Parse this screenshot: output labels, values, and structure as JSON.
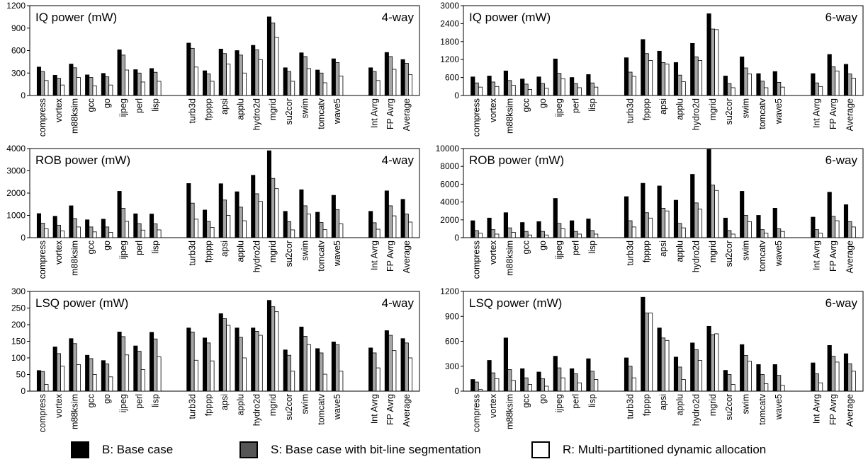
{
  "legend": {
    "base": "B: Base case",
    "seg": "S: Base case with bit-line segmentation",
    "multi": "R: Multi-partitioned dynamic allocation"
  },
  "colors": {
    "base": "#000000",
    "seg": "#a6a6a6",
    "multi": "#ffffff"
  },
  "chart_data": [
    {
      "type": "bar",
      "title": "IQ power (mW)",
      "config": "4-way",
      "ylim": [
        0,
        1200
      ],
      "yticks": [
        0,
        300,
        600,
        900,
        1200
      ],
      "categories": [
        "compress",
        "vortex",
        "m88ksim",
        "gcc",
        "go",
        "ijpeg",
        "perl",
        "lisp",
        "turb3d",
        "fpppp",
        "apsi",
        "applu",
        "hydro2d",
        "mgrid",
        "su2cor",
        "swim",
        "tomcatv",
        "wave5",
        "Int Avrg",
        "FP Avrg",
        "Average"
      ],
      "series": [
        {
          "name": "B",
          "values": [
            380,
            270,
            420,
            275,
            295,
            610,
            345,
            360,
            700,
            330,
            620,
            600,
            670,
            1050,
            370,
            570,
            340,
            490,
            370,
            575,
            480
          ]
        },
        {
          "name": "S",
          "values": [
            320,
            230,
            370,
            240,
            250,
            540,
            300,
            310,
            630,
            290,
            560,
            540,
            610,
            970,
            320,
            520,
            300,
            440,
            320,
            520,
            430
          ]
        },
        {
          "name": "R",
          "values": [
            200,
            140,
            240,
            130,
            140,
            340,
            180,
            190,
            380,
            190,
            420,
            300,
            480,
            780,
            190,
            360,
            170,
            260,
            200,
            350,
            280
          ]
        }
      ]
    },
    {
      "type": "bar",
      "title": "IQ power (mW)",
      "config": "6-way",
      "ylim": [
        0,
        3000
      ],
      "yticks": [
        0,
        600,
        1200,
        1800,
        2400,
        3000
      ],
      "categories": [
        "compress",
        "vortex",
        "m88ksim",
        "gcc",
        "go",
        "ijpeg",
        "perl",
        "lisp",
        "turb3d",
        "fpppp",
        "apsi",
        "applu",
        "hydro2d",
        "mgrid",
        "su2cor",
        "swim",
        "tomcatv",
        "wave5",
        "Int Avrg",
        "FP Avrg",
        "Average"
      ],
      "series": [
        {
          "name": "B",
          "values": [
            620,
            650,
            820,
            550,
            620,
            1220,
            600,
            700,
            1260,
            1870,
            1480,
            1100,
            1740,
            2730,
            650,
            1290,
            730,
            800,
            730,
            1370,
            1040
          ]
        },
        {
          "name": "S",
          "values": [
            420,
            450,
            500,
            380,
            400,
            740,
            400,
            420,
            780,
            1400,
            1100,
            680,
            1290,
            2220,
            400,
            920,
            480,
            440,
            420,
            960,
            720
          ]
        },
        {
          "name": "R",
          "values": [
            280,
            300,
            340,
            200,
            240,
            560,
            260,
            280,
            640,
            1170,
            1050,
            460,
            1170,
            2200,
            260,
            720,
            260,
            280,
            300,
            820,
            580
          ]
        }
      ]
    },
    {
      "type": "bar",
      "title": "ROB power (mW)",
      "config": "4-way",
      "ylim": [
        0,
        4000
      ],
      "yticks": [
        0,
        1000,
        2000,
        3000,
        4000
      ],
      "categories": [
        "compress",
        "vortex",
        "m88ksim",
        "gcc",
        "go",
        "ijpeg",
        "perl",
        "lisp",
        "turb3d",
        "fpppp",
        "apsi",
        "applu",
        "hydro2d",
        "mgrid",
        "su2cor",
        "swim",
        "tomcatv",
        "wave5",
        "Int Avrg",
        "FP Avrg",
        "Average"
      ],
      "series": [
        {
          "name": "B",
          "values": [
            1080,
            960,
            1430,
            800,
            830,
            2080,
            1070,
            1060,
            2430,
            1240,
            2420,
            2060,
            2800,
            3900,
            1180,
            2150,
            1140,
            1900,
            1180,
            2100,
            1720
          ]
        },
        {
          "name": "S",
          "values": [
            650,
            560,
            860,
            480,
            480,
            1320,
            630,
            620,
            1550,
            730,
            1690,
            1370,
            1970,
            2660,
            720,
            1430,
            680,
            1260,
            670,
            1430,
            1060
          ]
        },
        {
          "name": "R",
          "values": [
            400,
            300,
            480,
            260,
            240,
            730,
            340,
            350,
            830,
            460,
            1000,
            760,
            1630,
            2200,
            350,
            1060,
            360,
            620,
            380,
            980,
            700
          ]
        }
      ]
    },
    {
      "type": "bar",
      "title": "ROB power (mW)",
      "config": "6-way",
      "ylim": [
        0,
        10000
      ],
      "yticks": [
        0,
        2000,
        4000,
        6000,
        8000,
        10000
      ],
      "categories": [
        "compress",
        "vortex",
        "m88ksim",
        "gcc",
        "go",
        "ijpeg",
        "perl",
        "lisp",
        "turb3d",
        "fpppp",
        "apsi",
        "applu",
        "hydro2d",
        "mgrid",
        "su2cor",
        "swim",
        "tomcatv",
        "wave5",
        "Int Avrg",
        "FP Avrg",
        "Average"
      ],
      "series": [
        {
          "name": "B",
          "values": [
            1900,
            2200,
            2800,
            1700,
            1800,
            4400,
            1900,
            2100,
            4600,
            6100,
            5800,
            4200,
            7100,
            9900,
            2200,
            5200,
            2500,
            3300,
            2300,
            5100,
            3700
          ]
        },
        {
          "name": "S",
          "values": [
            800,
            900,
            1100,
            700,
            700,
            1600,
            700,
            800,
            1900,
            2800,
            3300,
            1600,
            3900,
            5900,
            800,
            2500,
            900,
            1000,
            900,
            2400,
            1800
          ]
        },
        {
          "name": "R",
          "values": [
            500,
            400,
            600,
            300,
            300,
            1000,
            400,
            400,
            1200,
            2200,
            3000,
            1100,
            3200,
            5300,
            400,
            1800,
            500,
            700,
            500,
            1900,
            1200
          ]
        }
      ]
    },
    {
      "type": "bar",
      "title": "LSQ power (mW)",
      "config": "4-way",
      "ylim": [
        0,
        300
      ],
      "yticks": [
        0,
        50,
        100,
        150,
        200,
        250,
        300
      ],
      "categories": [
        "compress",
        "vortex",
        "m88ksim",
        "gcc",
        "go",
        "ijpeg",
        "perl",
        "lisp",
        "turb3d",
        "fpppp",
        "apsi",
        "applu",
        "hydro2d",
        "mgrid",
        "su2cor",
        "swim",
        "tomcatv",
        "wave5",
        "Int Avrg",
        "FP Avrg",
        "Average"
      ],
      "series": [
        {
          "name": "B",
          "values": [
            62,
            133,
            158,
            108,
            92,
            178,
            136,
            177,
            190,
            160,
            233,
            190,
            190,
            273,
            124,
            193,
            128,
            148,
            130,
            182,
            158
          ]
        },
        {
          "name": "S",
          "values": [
            59,
            113,
            143,
            98,
            82,
            164,
            120,
            157,
            178,
            145,
            218,
            162,
            180,
            254,
            108,
            165,
            115,
            140,
            115,
            168,
            145
          ]
        },
        {
          "name": "R",
          "values": [
            20,
            75,
            80,
            50,
            43,
            109,
            65,
            103,
            93,
            91,
            198,
            100,
            168,
            239,
            60,
            140,
            51,
            60,
            70,
            122,
            100
          ]
        }
      ]
    },
    {
      "type": "bar",
      "title": "LSQ power (mW)",
      "config": "6-way",
      "ylim": [
        0,
        1200
      ],
      "yticks": [
        0,
        300,
        600,
        900,
        1200
      ],
      "categories": [
        "compress",
        "vortex",
        "m88ksim",
        "gcc",
        "go",
        "ijpeg",
        "perl",
        "lisp",
        "turb3d",
        "fpppp",
        "apsi",
        "applu",
        "hydro2d",
        "mgrid",
        "su2cor",
        "swim",
        "tomcatv",
        "wave5",
        "Int Avrg",
        "FP Avrg",
        "Average"
      ],
      "series": [
        {
          "name": "B",
          "values": [
            140,
            370,
            640,
            270,
            230,
            420,
            270,
            390,
            400,
            1130,
            760,
            410,
            580,
            780,
            250,
            560,
            320,
            320,
            340,
            550,
            450
          ]
        },
        {
          "name": "S",
          "values": [
            110,
            220,
            260,
            160,
            150,
            280,
            210,
            240,
            300,
            940,
            640,
            290,
            500,
            680,
            200,
            430,
            200,
            190,
            210,
            420,
            330
          ]
        },
        {
          "name": "R",
          "values": [
            20,
            150,
            130,
            80,
            60,
            160,
            100,
            140,
            160,
            940,
            610,
            140,
            370,
            690,
            80,
            360,
            90,
            70,
            100,
            350,
            240
          ]
        }
      ]
    }
  ]
}
